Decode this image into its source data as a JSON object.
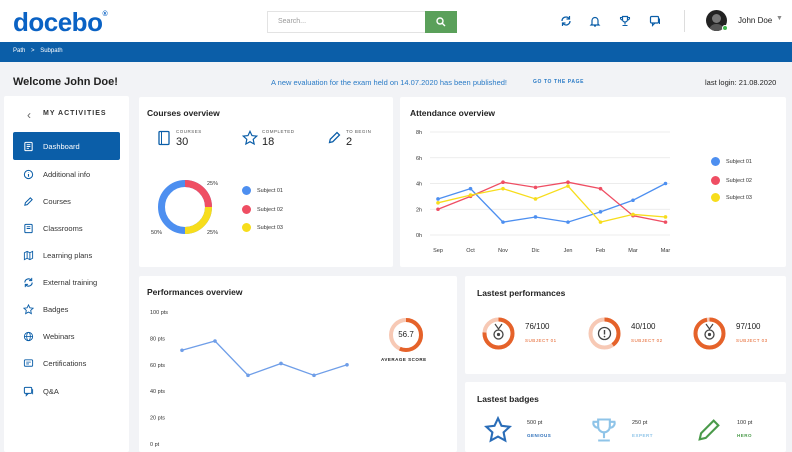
{
  "header": {
    "logo": "docebo",
    "logo_mark": "®",
    "search_placeholder": "Search...",
    "user_name": "John Doe"
  },
  "breadcrumb": {
    "items": [
      "Path",
      "Subpath"
    ],
    "separator": ">"
  },
  "banner": {
    "welcome": "Welcome John Doe!",
    "notice": "A new evaluation for the exam held on 14.07.2020 has been published!",
    "goto": "GO TO THE PAGE",
    "last_login": "last login: 21.08.2020"
  },
  "sidebar": {
    "title": "MY ACTIVITIES",
    "items": [
      {
        "label": "Dashboard",
        "icon": "dashboard-icon",
        "active": true
      },
      {
        "label": "Additional info",
        "icon": "info-icon"
      },
      {
        "label": "Courses",
        "icon": "pencil-icon"
      },
      {
        "label": "Classrooms",
        "icon": "classroom-icon"
      },
      {
        "label": "Learning plans",
        "icon": "map-icon"
      },
      {
        "label": "External training",
        "icon": "refresh-icon"
      },
      {
        "label": "Badges",
        "icon": "star-icon"
      },
      {
        "label": "Webinars",
        "icon": "globe-icon"
      },
      {
        "label": "Certifications",
        "icon": "certificate-icon"
      },
      {
        "label": "Q&A",
        "icon": "chat-icon"
      }
    ]
  },
  "courses_overview": {
    "title": "Courses overview",
    "stats": [
      {
        "label": "COURSES",
        "value": "30",
        "icon": "book-icon"
      },
      {
        "label": "COMPLETED",
        "value": "18",
        "icon": "star-icon"
      },
      {
        "label": "TO BEGIN",
        "value": "2",
        "icon": "pencil-icon"
      }
    ],
    "donut_labels": [
      "25%",
      "25%",
      "50%"
    ],
    "legend": [
      "Subject 01",
      "Subject 02",
      "Subject 03"
    ]
  },
  "attendance": {
    "title": "Attendance overview"
  },
  "performances_overview": {
    "title": "Performances overview",
    "average": "56.7",
    "average_label": "AVERAGE SCORE"
  },
  "latest_performances": {
    "title": "Lastest performances",
    "items": [
      {
        "score": "76/100",
        "subject": "SUBJECT 01",
        "value": 0.76,
        "icon": "medal-icon"
      },
      {
        "score": "40/100",
        "subject": "SUBJECT 02",
        "value": 0.4,
        "icon": "alert-icon"
      },
      {
        "score": "97/100",
        "subject": "SUBJECT 03",
        "value": 0.97,
        "icon": "medal-icon"
      }
    ]
  },
  "latest_badges": {
    "title": "Lastest badges",
    "items": [
      {
        "points": "500 pt",
        "label": "GENIOUS",
        "color": "#2a6db8",
        "icon": "star-icon"
      },
      {
        "points": "250 pt",
        "label": "EXPERT",
        "color": "#8fc4e8",
        "icon": "trophy-icon"
      },
      {
        "points": "100 pt",
        "label": "HERO",
        "color": "#4a9a4a",
        "icon": "pencil-icon"
      }
    ]
  },
  "colors": {
    "brand": "#0b5ea8",
    "subject01": "#4d8ff0",
    "subject02": "#ef4e63",
    "subject03": "#f7dd1c",
    "accent_orange": "#e5622a"
  },
  "chart_data": [
    {
      "type": "pie",
      "title": "Courses overview",
      "labels": [
        "Subject 01",
        "Subject 02",
        "Subject 03"
      ],
      "values": [
        50,
        25,
        25
      ]
    },
    {
      "type": "line",
      "title": "Attendance overview",
      "categories": [
        "Sep",
        "Oct",
        "Nov",
        "Dic",
        "Jen",
        "Feb",
        "Mar",
        "Mar"
      ],
      "y_ticks": [
        "0h",
        "2h",
        "4h",
        "6h",
        "8h"
      ],
      "ylim": [
        0,
        8
      ],
      "grid": true,
      "legend_position": "right",
      "series": [
        {
          "name": "Subject 01",
          "color": "#4d8ff0",
          "values": [
            2.8,
            3.6,
            1.0,
            1.4,
            1.0,
            1.8,
            2.7,
            4.0
          ]
        },
        {
          "name": "Subject 02",
          "color": "#ef4e63",
          "values": [
            2.0,
            3.0,
            4.1,
            3.7,
            4.1,
            3.6,
            1.5,
            1.0
          ]
        },
        {
          "name": "Subject 03",
          "color": "#f7dd1c",
          "values": [
            2.5,
            3.1,
            3.6,
            2.8,
            3.8,
            1.0,
            1.6,
            1.4
          ]
        }
      ]
    },
    {
      "type": "line",
      "title": "Performances overview",
      "y_ticks": [
        "0 pt",
        "20 pts",
        "40 pts",
        "60 pts",
        "80 pts",
        "100 pts"
      ],
      "ylim": [
        0,
        100
      ],
      "series": [
        {
          "color": "#6f9ee8",
          "values": [
            71,
            78,
            52,
            61,
            52,
            60
          ]
        }
      ]
    }
  ]
}
